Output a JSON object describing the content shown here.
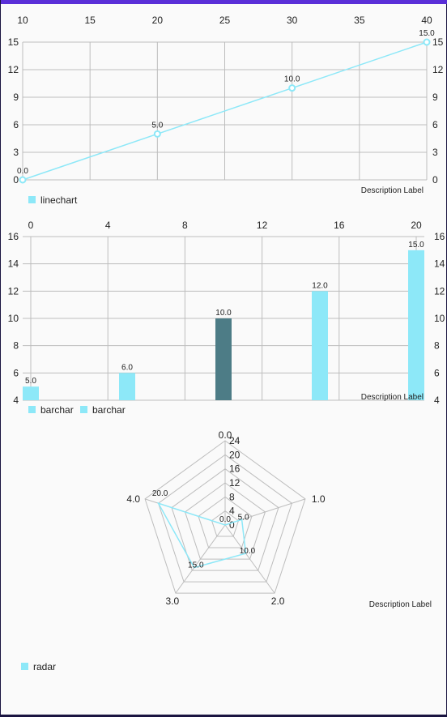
{
  "colors": {
    "series": "#8de8f8",
    "highlight": "#4d7c86",
    "grid": "#bdbdbd",
    "status_bar": "#5a2fd8"
  },
  "chart_data": [
    {
      "type": "line",
      "x": [
        10,
        20,
        30,
        40
      ],
      "values": [
        0,
        5,
        10,
        15
      ],
      "value_labels": [
        "0.0",
        "5.0",
        "10.0",
        "15.0"
      ],
      "x_ticks": [
        "10",
        "15",
        "20",
        "25",
        "30",
        "35",
        "40"
      ],
      "y_ticks": [
        "0",
        "3",
        "6",
        "9",
        "12",
        "15"
      ],
      "xlim": [
        10,
        40
      ],
      "ylim": [
        0,
        15
      ],
      "description": "Description Label",
      "legend": [
        "linechart"
      ],
      "legend_position": "bottom-left",
      "grid": true
    },
    {
      "type": "bar",
      "x": [
        0,
        5,
        10,
        15,
        20
      ],
      "values": [
        5,
        6,
        10,
        12,
        15
      ],
      "value_labels": [
        "5.0",
        "6.0",
        "10.0",
        "12.0",
        "15.0"
      ],
      "highlighted_index": 2,
      "x_ticks": [
        "0",
        "4",
        "8",
        "12",
        "16",
        "20"
      ],
      "y_ticks": [
        "4",
        "6",
        "8",
        "10",
        "12",
        "14",
        "16"
      ],
      "xlim": [
        0,
        20
      ],
      "ylim": [
        4,
        16
      ],
      "description": "Description Label",
      "legend": [
        "barchar",
        "barchar"
      ],
      "legend_position": "bottom-left",
      "grid": true
    },
    {
      "type": "radar",
      "axes": [
        "0.0",
        "1.0",
        "2.0",
        "3.0",
        "4.0"
      ],
      "values": [
        0,
        5,
        10,
        15,
        20
      ],
      "value_labels": [
        "0.0",
        "5.0",
        "10.0",
        "15.0",
        "20.0"
      ],
      "r_ticks": [
        "0",
        "4",
        "8",
        "12",
        "16",
        "20",
        "24"
      ],
      "rlim": [
        0,
        24
      ],
      "description": "Description Label",
      "legend": [
        "radar"
      ],
      "legend_position": "bottom-left"
    }
  ]
}
